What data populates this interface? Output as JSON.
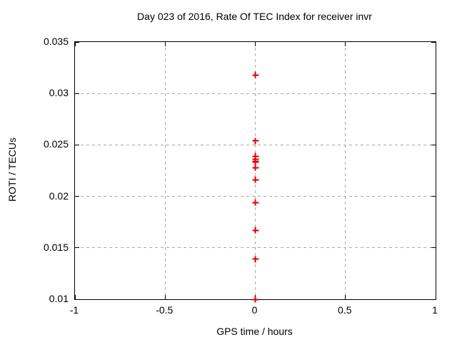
{
  "chart_data": {
    "type": "scatter",
    "title": "Day 023 of 2016, Rate Of TEC Index for receiver invr",
    "xlabel": "GPS time / hours",
    "ylabel": "ROTI / TECUs",
    "xlim": [
      -1,
      1
    ],
    "ylim": [
      0.01,
      0.035
    ],
    "x_ticks": [
      {
        "v": -1,
        "label": "-1"
      },
      {
        "v": -0.5,
        "label": "-0.5"
      },
      {
        "v": 0,
        "label": "0"
      },
      {
        "v": 0.5,
        "label": "0.5"
      },
      {
        "v": 1,
        "label": "1"
      }
    ],
    "y_ticks": [
      {
        "v": 0.01,
        "label": "0.01"
      },
      {
        "v": 0.015,
        "label": "0.015"
      },
      {
        "v": 0.02,
        "label": "0.02"
      },
      {
        "v": 0.025,
        "label": "0.025"
      },
      {
        "v": 0.03,
        "label": "0.03"
      },
      {
        "v": 0.035,
        "label": "0.035"
      }
    ],
    "grid": true,
    "legend": "none",
    "marker": "plus",
    "series": [
      {
        "x": [
          0,
          0,
          0,
          0,
          0,
          0,
          0,
          0,
          0,
          0,
          0,
          0
        ],
        "y": [
          0.0318,
          0.0254,
          0.0239,
          0.0236,
          0.0234,
          0.0233,
          0.0228,
          0.0216,
          0.0194,
          0.0167,
          0.0139,
          0.01
        ]
      }
    ],
    "colors": {
      "marker": "#e00000",
      "grid": "#a9a9a9",
      "frame": "#000000",
      "background": "#ffffff"
    }
  }
}
